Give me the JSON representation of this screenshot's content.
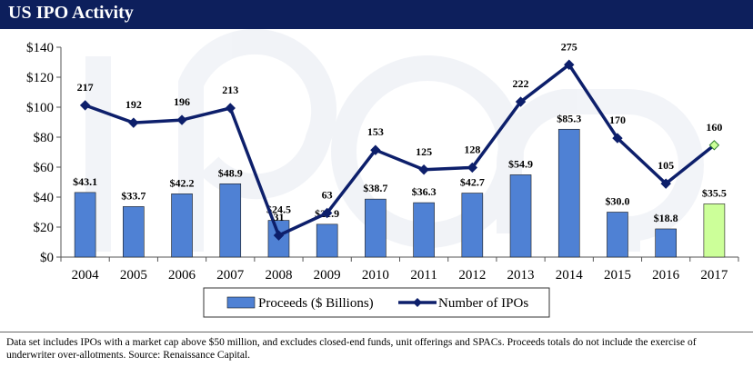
{
  "header": {
    "title": "US IPO Activity"
  },
  "chart_data": {
    "type": "bar",
    "categories": [
      "2004",
      "2005",
      "2006",
      "2007",
      "2008",
      "2009",
      "2010",
      "2011",
      "2012",
      "2013",
      "2014",
      "2015",
      "2016",
      "2017"
    ],
    "series": [
      {
        "name": "Proceeds ($ Billions)",
        "type": "bar",
        "values": [
          43.1,
          33.7,
          42.2,
          48.9,
          24.5,
          21.9,
          38.7,
          36.3,
          42.7,
          54.9,
          85.3,
          30.0,
          18.8,
          35.5
        ],
        "labels": [
          "$43.1",
          "$33.7",
          "$42.2",
          "$48.9",
          "$24.5",
          "$21.9",
          "$38.7",
          "$36.3",
          "$42.7",
          "$54.9",
          "$85.3",
          "$30.0",
          "$18.8",
          "$35.5"
        ],
        "color": "#4f81d4",
        "highlight_color": "#ccff99"
      },
      {
        "name": "Number of IPOs",
        "type": "line",
        "values": [
          217,
          192,
          196,
          213,
          31,
          63,
          153,
          125,
          128,
          222,
          275,
          170,
          105,
          160
        ],
        "labels": [
          "217",
          "192",
          "196",
          "213",
          "31",
          "63",
          "153",
          "125",
          "128",
          "222",
          "275",
          "170",
          "105",
          "160"
        ],
        "color": "#0d1f6b",
        "highlight_color": "#ccff99"
      }
    ],
    "y_axis": {
      "ticks": [
        "$0",
        "$20",
        "$40",
        "$60",
        "$80",
        "$100",
        "$120",
        "$140"
      ],
      "tick_values": [
        0,
        20,
        40,
        60,
        80,
        100,
        120,
        140
      ],
      "ylim": [
        0,
        140
      ]
    },
    "secondary_scale": {
      "ylim": [
        0,
        300
      ]
    },
    "legend": {
      "position": "bottom",
      "items": [
        "Proceeds ($ Billions)",
        "Number of IPOs"
      ]
    },
    "grid": false
  },
  "footnote": "Data set includes IPOs with a market cap above $50 million, and excludes closed-end funds, unit offerings and SPACs. Proceeds totals do not include the exercise of underwriter over-allotments. Source: Renaissance Capital."
}
